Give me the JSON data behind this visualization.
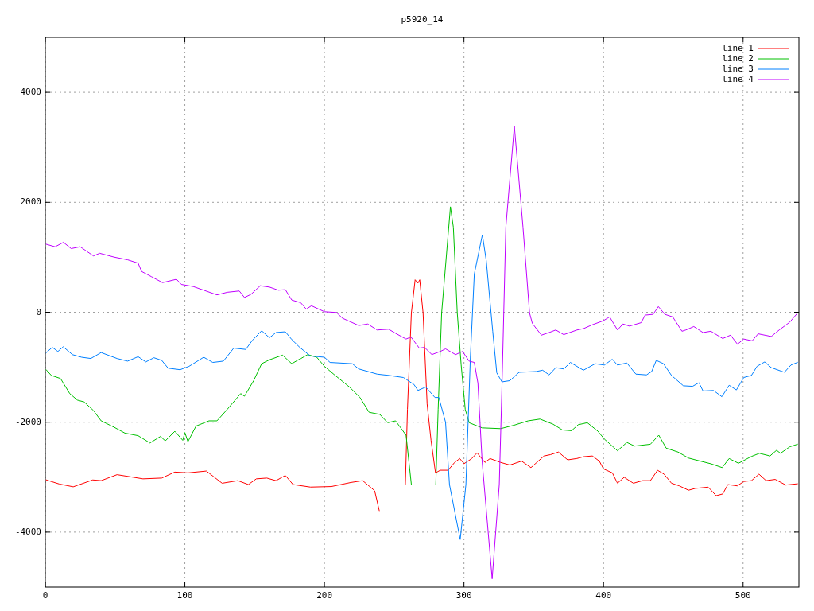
{
  "chart_data": {
    "type": "line",
    "title": "p5920_14",
    "xlim": [
      0,
      540
    ],
    "xticks": [
      0,
      100,
      200,
      300,
      400,
      500
    ],
    "ylim": [
      -5000,
      5000
    ],
    "yticks": [
      -4000,
      -2000,
      0,
      2000,
      4000
    ],
    "grid": true,
    "legend": "top right",
    "line_style": "solid",
    "marker": "none",
    "series": [
      {
        "name": "line 1",
        "color": "#ff0000",
        "x": [
          0.6,
          10,
          20,
          34,
          40,
          51.4,
          70,
          83.4,
          92.8,
          102.2,
          115.4,
          126.7,
          138,
          145.5,
          151.2,
          158.7,
          165.3,
          172,
          177.5,
          190,
          205,
          219,
          227.4,
          236,
          239.3,
          242.8,
          249,
          255.9,
          258,
          259.5,
          262.3,
          265,
          267,
          268.3,
          270.7,
          273.6,
          276.4,
          279.6,
          283,
          288.6,
          293.3,
          297,
          300,
          305.6,
          309.4,
          315,
          318.7,
          326.3,
          332.9,
          341.3,
          348,
          357.4,
          362,
          367.7,
          374.3,
          381,
          385.6,
          392,
          397,
          400,
          406.3,
          410,
          414.8,
          421.4,
          428,
          433.6,
          438.7,
          443.4,
          448.7,
          454.3,
          460.9,
          465.6,
          475,
          480.7,
          485.4,
          489.1,
          495.8,
          500.5,
          506,
          511.4,
          516.5,
          523,
          530.6,
          539
        ],
        "values": [
          -3049,
          -3124,
          -3175,
          -3050,
          -3063,
          -2954,
          -3030,
          -3016,
          -2907,
          -2921,
          -2888,
          -3110,
          -3063,
          -3134,
          -3030,
          -3016,
          -3063,
          -2968,
          -3134,
          -3180,
          -3170,
          -3096,
          -3063,
          -3247,
          -3610,
          null,
          null,
          null,
          -3134,
          -1763,
          -14,
          591,
          529,
          591,
          -14,
          -1669,
          -2330,
          -2921,
          -2874,
          -2874,
          -2732,
          -2661,
          -2756,
          -2661,
          -2557,
          -2732,
          -2661,
          -2732,
          -2779,
          -2708,
          -2826,
          -2614,
          -2590,
          -2543,
          -2685,
          -2660,
          -2628,
          -2614,
          -2708,
          -2850,
          -2921,
          -3110,
          -3002,
          -3110,
          -3063,
          -3063,
          -2874,
          -2945,
          -3110,
          -3158,
          -3238,
          -3205,
          -3181,
          -3337,
          -3305,
          -3134,
          -3158,
          -3078,
          -3063,
          -2945,
          -3063,
          -3040,
          -3143,
          -3120
        ]
      },
      {
        "name": "line 2",
        "color": "#00c000",
        "x": [
          0.6,
          4.3,
          10.9,
          17.5,
          23,
          27.8,
          34.5,
          40,
          49.5,
          57,
          66.5,
          75,
          82.5,
          86,
          92.8,
          98.5,
          100,
          102.2,
          108,
          117.3,
          123,
          130.5,
          140,
          142.7,
          149.3,
          155,
          160.6,
          170,
          176.6,
          181.3,
          183.2,
          188,
          194.5,
          200,
          207.7,
          218,
          225.5,
          232,
          239.7,
          245.3,
          251,
          258.5,
          262.3,
          267.5,
          272.5,
          277.9,
          279.8,
          281.5,
          284,
          290.3,
          292.4,
          295.2,
          298,
          300.9,
          303.7,
          313,
          326.3,
          335.7,
          346,
          354.5,
          363.9,
          370.5,
          377.1,
          381.8,
          388.4,
          396,
          400.6,
          410,
          416.7,
          422.3,
          433.6,
          439.6,
          444.9,
          453.4,
          460.9,
          469.4,
          476.9,
          485,
          490,
          496.7,
          506,
          511.7,
          519.3,
          524,
          526.8,
          533.4,
          539
        ],
        "values": [
          -1045,
          -1149,
          -1205,
          -1479,
          -1598,
          -1631,
          -1787,
          -1975,
          -2094,
          -2198,
          -2245,
          -2378,
          -2259,
          -2340,
          -2165,
          -2330,
          -2188,
          -2354,
          -2070,
          -1975,
          -1975,
          -1763,
          -1479,
          -1527,
          -1244,
          -936,
          -865,
          -780,
          -936,
          -865,
          -841,
          -770,
          -818,
          -983,
          -1149,
          -1361,
          -1550,
          -1819,
          -1858,
          -2009,
          -1975,
          -2236,
          -3134,
          null,
          null,
          null,
          -3134,
          -1763,
          -14,
          1919,
          1546,
          -14,
          -960,
          -1763,
          -2009,
          -2103,
          -2117,
          -2056,
          -1975,
          -1943,
          -2037,
          -2141,
          -2155,
          -2046,
          -2009,
          -2165,
          -2307,
          -2519,
          -2368,
          -2434,
          -2401,
          -2236,
          -2472,
          -2543,
          -2652,
          -2708,
          -2756,
          -2826,
          -2661,
          -2747,
          -2623,
          -2566,
          -2614,
          -2510,
          -2566,
          -2448,
          -2401
        ]
      },
      {
        "name": "line 3",
        "color": "#0080ff",
        "x": [
          0.6,
          5,
          9,
          12.8,
          19.4,
          26,
          32.6,
          40,
          51.4,
          59,
          66.5,
          72,
          77.8,
          83.4,
          88,
          96.6,
          103,
          113.5,
          120,
          127.6,
          135,
          143.6,
          148.4,
          155,
          160.6,
          165.3,
          172,
          176.6,
          182.3,
          189.8,
          200,
          204,
          220,
          224.6,
          237.8,
          246.3,
          256.6,
          264.2,
          267,
          272.6,
          279.2,
          282,
          286.8,
          289.6,
          297.3,
          301.4,
          304.6,
          307.4,
          313.2,
          316,
          320.6,
          323.5,
          327.2,
          332.9,
          339.5,
          351.7,
          356.4,
          361,
          365.8,
          371.5,
          376.2,
          385.6,
          394,
          400.6,
          406.3,
          410,
          416.7,
          423.2,
          430.8,
          434.5,
          437.8,
          443,
          448.7,
          457.2,
          463.8,
          468.4,
          471.3,
          478.8,
          484.8,
          490,
          495.2,
          500.5,
          506,
          510,
          515.5,
          520.2,
          529.6,
          534.3,
          539
        ],
        "values": [
          -737,
          -638,
          -713,
          -628,
          -770,
          -818,
          -841,
          -733,
          -841,
          -889,
          -808,
          -903,
          -827,
          -875,
          -1017,
          -1045,
          -983,
          -818,
          -912,
          -889,
          -652,
          -676,
          -510,
          -336,
          -463,
          -369,
          -355,
          -496,
          -638,
          -794,
          -818,
          -912,
          -936,
          -1031,
          -1125,
          -1149,
          -1187,
          -1314,
          -1422,
          -1361,
          -1550,
          -1550,
          -2000,
          -3134,
          -4135,
          -3134,
          -818,
          695,
          1411,
          932,
          -345,
          -1102,
          -1266,
          -1244,
          -1092,
          -1078,
          -1054,
          -1139,
          -1007,
          -1031,
          -912,
          -1054,
          -936,
          -960,
          -855,
          -960,
          -922,
          -1125,
          -1139,
          -1078,
          -875,
          -936,
          -1149,
          -1337,
          -1347,
          -1281,
          -1432,
          -1422,
          -1536,
          -1328,
          -1413,
          -1187,
          -1149,
          -983,
          -903,
          -1007,
          -1092,
          -960,
          -912
        ]
      },
      {
        "name": "line 4",
        "color": "#c000ff",
        "x": [
          0.6,
          7,
          13,
          18.5,
          25,
          34.5,
          39,
          49.5,
          59,
          66.5,
          69,
          76,
          84,
          94,
          97.5,
          106,
          113.5,
          123,
          130.5,
          139,
          142.7,
          147.4,
          154,
          160.6,
          167,
          172,
          176.6,
          183,
          187,
          190.7,
          200,
          208.6,
          213,
          224.6,
          231,
          237.8,
          246,
          251,
          258.5,
          262,
          268,
          271.7,
          277,
          283,
          286.8,
          294,
          299,
          303.7,
          307.4,
          310,
          311,
          313,
          320.2,
          325.3,
          327.2,
          330,
          336.1,
          342.3,
          347,
          349,
          355.5,
          361,
          365.8,
          371.5,
          381,
          385.6,
          392,
          399.7,
          404.4,
          410,
          413.9,
          418.6,
          427,
          429.8,
          435.5,
          439.3,
          444,
          449.6,
          456.2,
          459,
          464.7,
          471.3,
          476.9,
          485.4,
          491,
          496,
          500.5,
          506.5,
          510.8,
          520.2,
          525.9,
          533.4,
          539
        ],
        "values": [
          1238,
          1191,
          1272,
          1158,
          1191,
          1025,
          1073,
          1002,
          954,
          893,
          742,
          648,
          539,
          600,
          506,
          468,
          401,
          316,
          364,
          387,
          269,
          326,
          482,
          458,
          401,
          411,
          222,
          174,
          57,
          118,
          10,
          -4,
          -109,
          -241,
          -213,
          -322,
          -308,
          -383,
          -487,
          -450,
          -652,
          -638,
          -770,
          -713,
          -666,
          -770,
          -713,
          -889,
          -912,
          -1290,
          -1760,
          -2710,
          -4850,
          -3134,
          -1385,
          1546,
          3386,
          1546,
          -14,
          -203,
          -416,
          -369,
          -322,
          -407,
          -322,
          -298,
          -227,
          -156,
          -85,
          -322,
          -213,
          -251,
          -189,
          -52,
          -38,
          104,
          -38,
          -85,
          -345,
          -322,
          -260,
          -369,
          -345,
          -478,
          -416,
          -581,
          -487,
          -520,
          -392,
          -440,
          -322,
          -180,
          -14
        ]
      }
    ]
  }
}
